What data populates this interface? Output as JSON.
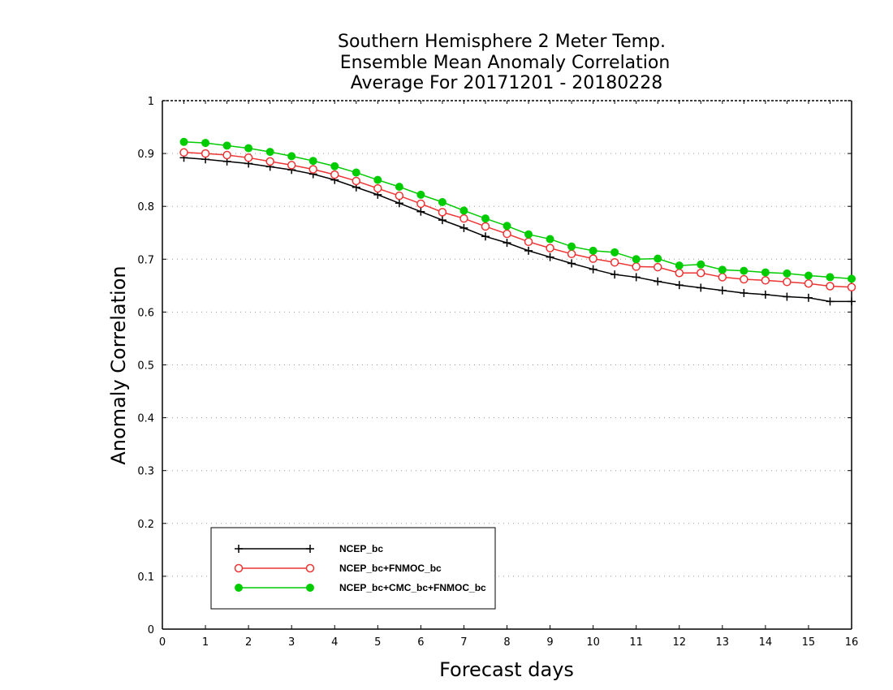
{
  "chart_data": {
    "type": "line",
    "title": [
      "Southern Hemisphere 2 Meter Temp.",
      "Ensemble Mean Anomaly Correlation",
      "Average For 20171201 - 20180228"
    ],
    "xlabel": "Forecast days",
    "ylabel": "Anomaly Correlation",
    "xlim": [
      0,
      16
    ],
    "ylim": [
      0,
      1
    ],
    "xticks": [
      0,
      1,
      2,
      3,
      4,
      5,
      6,
      7,
      8,
      9,
      10,
      11,
      12,
      13,
      14,
      15,
      16
    ],
    "yticks": [
      0,
      0.1,
      0.2,
      0.3,
      0.4,
      0.5,
      0.6,
      0.7,
      0.8,
      0.9,
      1
    ],
    "ytick_labels": [
      "0",
      "0.1",
      "0.2",
      "0.3",
      "0.4",
      "0.5",
      "0.6",
      "0.7",
      "0.8",
      "0.9",
      "1"
    ],
    "grid": true,
    "legend_position": "bottom-left",
    "x": [
      0.5,
      1,
      1.5,
      2,
      2.5,
      3,
      3.5,
      4,
      4.5,
      5,
      5.5,
      6,
      6.5,
      7,
      7.5,
      8,
      8.5,
      9,
      9.5,
      10,
      10.5,
      11,
      11.5,
      12,
      12.5,
      13,
      13.5,
      14,
      14.5,
      15,
      15.5,
      16
    ],
    "series": [
      {
        "name": "NCEP_bc",
        "color": "#000000",
        "marker": "plus",
        "values": [
          0.892,
          0.889,
          0.885,
          0.881,
          0.875,
          0.869,
          0.861,
          0.85,
          0.836,
          0.822,
          0.806,
          0.79,
          0.774,
          0.759,
          0.743,
          0.731,
          0.716,
          0.704,
          0.692,
          0.681,
          0.671,
          0.666,
          0.658,
          0.651,
          0.646,
          0.641,
          0.636,
          0.633,
          0.629,
          0.627,
          0.62,
          0.62
        ]
      },
      {
        "name": "NCEP_bc+FNMOC_bc",
        "color": "#ee3333",
        "marker": "open-circle",
        "values": [
          0.902,
          0.9,
          0.897,
          0.892,
          0.885,
          0.878,
          0.87,
          0.86,
          0.848,
          0.834,
          0.82,
          0.805,
          0.789,
          0.777,
          0.762,
          0.748,
          0.733,
          0.721,
          0.71,
          0.701,
          0.694,
          0.686,
          0.685,
          0.674,
          0.674,
          0.666,
          0.662,
          0.66,
          0.657,
          0.654,
          0.649,
          0.647
        ]
      },
      {
        "name": "NCEP_bc+CMC_bc+FNMOC_bc",
        "color": "#00cc00",
        "marker": "filled-circle",
        "values": [
          0.922,
          0.92,
          0.915,
          0.91,
          0.903,
          0.895,
          0.886,
          0.876,
          0.864,
          0.85,
          0.837,
          0.822,
          0.808,
          0.792,
          0.777,
          0.763,
          0.747,
          0.738,
          0.724,
          0.716,
          0.713,
          0.7,
          0.701,
          0.688,
          0.69,
          0.68,
          0.678,
          0.675,
          0.673,
          0.669,
          0.666,
          0.663
        ]
      }
    ]
  }
}
